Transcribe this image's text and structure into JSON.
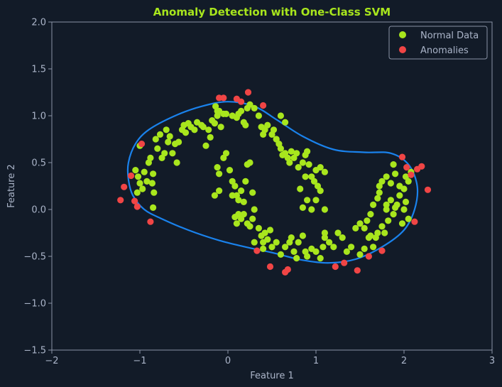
{
  "chart_data": {
    "type": "scatter",
    "title": "Anomaly Detection with One-Class SVM",
    "xlabel": "Feature 1",
    "ylabel": "Feature 2",
    "xlim": [
      -2,
      3
    ],
    "ylim": [
      -1.5,
      2.0
    ],
    "xticks": [
      -2,
      -1,
      0,
      1,
      2,
      3
    ],
    "yticks": [
      -1.5,
      -1.0,
      -0.5,
      0.0,
      0.5,
      1.0,
      1.5,
      2.0
    ],
    "xtick_labels": [
      "−2",
      "−1",
      "0",
      "1",
      "2",
      "3"
    ],
    "ytick_labels": [
      "−1.5",
      "−1.0",
      "−0.5",
      "0.0",
      "0.5",
      "1.0",
      "1.5",
      "2.0"
    ],
    "grid": false,
    "legend_position": "top-right",
    "series": [
      {
        "name": "Normal Data",
        "color": "#a8e61d",
        "points": [
          [
            -1.05,
            0.42
          ],
          [
            -1.02,
            0.35
          ],
          [
            -1.0,
            0.28
          ],
          [
            -0.97,
            0.22
          ],
          [
            -0.95,
            0.4
          ],
          [
            -1.03,
            0.18
          ],
          [
            -0.92,
            0.3
          ],
          [
            -0.9,
            0.5
          ],
          [
            -0.88,
            0.55
          ],
          [
            -0.85,
            0.38
          ],
          [
            -0.86,
            0.28
          ],
          [
            -0.84,
            0.18
          ],
          [
            -0.85,
            0.02
          ],
          [
            -1.0,
            0.68
          ],
          [
            -0.82,
            0.75
          ],
          [
            -0.8,
            0.65
          ],
          [
            -0.77,
            0.8
          ],
          [
            -0.75,
            0.55
          ],
          [
            -0.72,
            0.6
          ],
          [
            -0.7,
            0.85
          ],
          [
            -0.68,
            0.72
          ],
          [
            -0.66,
            0.78
          ],
          [
            -0.63,
            0.6
          ],
          [
            -0.6,
            0.7
          ],
          [
            -0.58,
            0.5
          ],
          [
            -0.56,
            0.72
          ],
          [
            -0.52,
            0.85
          ],
          [
            -0.5,
            0.9
          ],
          [
            -0.48,
            0.82
          ],
          [
            -0.45,
            0.92
          ],
          [
            -0.42,
            0.88
          ],
          [
            -0.38,
            0.85
          ],
          [
            -0.35,
            0.93
          ],
          [
            -0.3,
            0.9
          ],
          [
            -0.28,
            0.88
          ],
          [
            -0.25,
            0.68
          ],
          [
            -0.22,
            0.85
          ],
          [
            -0.2,
            0.77
          ],
          [
            -0.18,
            0.95
          ],
          [
            -0.15,
            0.92
          ],
          [
            -0.12,
            1.0
          ],
          [
            -0.1,
            1.05
          ],
          [
            -0.08,
            0.88
          ],
          [
            -0.05,
            1.02
          ],
          [
            -0.02,
            1.02
          ],
          [
            0.05,
            1.0
          ],
          [
            0.1,
            0.98
          ],
          [
            0.15,
            1.05
          ],
          [
            0.18,
            0.93
          ],
          [
            0.2,
            0.9
          ],
          [
            0.22,
            1.08
          ],
          [
            0.25,
            1.12
          ],
          [
            0.3,
            1.08
          ],
          [
            -0.14,
            1.1
          ],
          [
            -0.12,
            1.05
          ],
          [
            0.12,
            1.02
          ],
          [
            0.35,
            1.0
          ],
          [
            0.38,
            0.88
          ],
          [
            0.4,
            0.8
          ],
          [
            0.42,
            0.85
          ],
          [
            0.45,
            0.9
          ],
          [
            0.5,
            0.8
          ],
          [
            0.52,
            0.85
          ],
          [
            0.55,
            0.75
          ],
          [
            0.58,
            0.7
          ],
          [
            0.6,
            0.65
          ],
          [
            0.62,
            0.58
          ],
          [
            0.65,
            0.6
          ],
          [
            0.68,
            0.55
          ],
          [
            0.7,
            0.5
          ],
          [
            0.72,
            0.62
          ],
          [
            0.75,
            0.55
          ],
          [
            0.78,
            0.6
          ],
          [
            0.8,
            0.45
          ],
          [
            0.85,
            0.5
          ],
          [
            0.88,
            0.58
          ],
          [
            0.9,
            0.62
          ],
          [
            0.92,
            0.48
          ],
          [
            0.95,
            0.35
          ],
          [
            0.98,
            0.3
          ],
          [
            1.0,
            0.42
          ],
          [
            1.05,
            0.45
          ],
          [
            1.1,
            0.4
          ],
          [
            1.02,
            0.25
          ],
          [
            0.88,
            0.35
          ],
          [
            0.82,
            0.22
          ],
          [
            0.85,
            0.02
          ],
          [
            0.9,
            0.1
          ],
          [
            0.95,
            0.0
          ],
          [
            1.0,
            0.1
          ],
          [
            1.05,
            0.2
          ],
          [
            1.1,
            0.0
          ],
          [
            0.55,
            0.75
          ],
          [
            0.6,
            1.0
          ],
          [
            0.65,
            0.93
          ],
          [
            -0.15,
            0.15
          ],
          [
            -0.1,
            0.2
          ],
          [
            -0.05,
            0.55
          ],
          [
            -0.02,
            0.6
          ],
          [
            0.02,
            0.42
          ],
          [
            0.05,
            0.3
          ],
          [
            0.08,
            0.25
          ],
          [
            0.1,
            0.15
          ],
          [
            0.12,
            0.1
          ],
          [
            0.15,
            0.2
          ],
          [
            0.18,
            0.08
          ],
          [
            0.2,
            0.3
          ],
          [
            0.22,
            0.48
          ],
          [
            0.25,
            0.5
          ],
          [
            0.28,
            0.18
          ],
          [
            0.12,
            -0.05
          ],
          [
            0.15,
            -0.1
          ],
          [
            0.18,
            -0.05
          ],
          [
            0.22,
            -0.15
          ],
          [
            0.25,
            -0.18
          ],
          [
            0.28,
            -0.1
          ],
          [
            0.3,
            0.0
          ],
          [
            0.08,
            -0.08
          ],
          [
            0.1,
            -0.15
          ],
          [
            0.05,
            0.15
          ],
          [
            -0.12,
            0.45
          ],
          [
            -0.1,
            0.38
          ],
          [
            0.35,
            -0.2
          ],
          [
            0.38,
            -0.28
          ],
          [
            0.4,
            -0.35
          ],
          [
            0.42,
            -0.25
          ],
          [
            0.45,
            -0.32
          ],
          [
            0.48,
            -0.22
          ],
          [
            0.5,
            -0.4
          ],
          [
            0.55,
            -0.35
          ],
          [
            0.6,
            -0.48
          ],
          [
            0.65,
            -0.4
          ],
          [
            0.7,
            -0.35
          ],
          [
            0.72,
            -0.3
          ],
          [
            0.75,
            -0.45
          ],
          [
            0.78,
            -0.52
          ],
          [
            0.8,
            -0.35
          ],
          [
            0.85,
            -0.28
          ],
          [
            0.88,
            -0.45
          ],
          [
            0.9,
            -0.5
          ],
          [
            0.95,
            -0.42
          ],
          [
            1.0,
            -0.45
          ],
          [
            1.05,
            -0.52
          ],
          [
            1.08,
            -0.4
          ],
          [
            1.1,
            -0.3
          ],
          [
            1.15,
            -0.35
          ],
          [
            1.2,
            -0.4
          ],
          [
            1.25,
            -0.25
          ],
          [
            1.3,
            -0.3
          ],
          [
            1.35,
            -0.45
          ],
          [
            1.4,
            -0.4
          ],
          [
            1.45,
            -0.2
          ],
          [
            1.5,
            -0.48
          ],
          [
            1.55,
            -0.42
          ],
          [
            1.6,
            -0.3
          ],
          [
            1.65,
            -0.4
          ],
          [
            1.7,
            -0.25
          ],
          [
            1.75,
            -0.18
          ],
          [
            1.58,
            -0.12
          ],
          [
            1.62,
            -0.28
          ],
          [
            1.68,
            -0.3
          ],
          [
            1.1,
            -0.25
          ],
          [
            0.4,
            -0.42
          ],
          [
            0.3,
            -0.35
          ],
          [
            1.5,
            -0.15
          ],
          [
            1.55,
            -0.2
          ],
          [
            1.62,
            -0.05
          ],
          [
            1.65,
            0.05
          ],
          [
            1.7,
            0.12
          ],
          [
            1.72,
            0.25
          ],
          [
            1.75,
            0.3
          ],
          [
            1.8,
            0.35
          ],
          [
            1.85,
            0.28
          ],
          [
            1.88,
            0.48
          ],
          [
            1.9,
            0.38
          ],
          [
            1.95,
            0.25
          ],
          [
            2.0,
            0.22
          ],
          [
            2.02,
            0.35
          ],
          [
            2.05,
            0.3
          ],
          [
            2.08,
            0.4
          ],
          [
            1.8,
            0.05
          ],
          [
            1.85,
            0.1
          ],
          [
            1.9,
            0.02
          ],
          [
            1.95,
            0.15
          ],
          [
            2.02,
            0.08
          ],
          [
            1.82,
            -0.12
          ],
          [
            1.88,
            -0.05
          ],
          [
            1.98,
            -0.15
          ],
          [
            2.05,
            -0.1
          ],
          [
            1.78,
            -0.25
          ],
          [
            1.72,
            0.18
          ],
          [
            1.8,
            0.0
          ],
          [
            1.92,
            0.05
          ],
          [
            2.0,
            0.0
          ]
        ]
      },
      {
        "name": "Anomalies",
        "color": "#f04545",
        "points": [
          [
            -1.22,
            0.1
          ],
          [
            -1.18,
            0.24
          ],
          [
            -1.1,
            0.36
          ],
          [
            -1.06,
            0.09
          ],
          [
            -1.03,
            0.03
          ],
          [
            -0.98,
            0.7
          ],
          [
            -0.88,
            -0.13
          ],
          [
            -0.1,
            1.19
          ],
          [
            -0.05,
            1.19
          ],
          [
            0.1,
            1.18
          ],
          [
            0.15,
            1.15
          ],
          [
            0.23,
            1.25
          ],
          [
            0.4,
            1.11
          ],
          [
            0.33,
            -0.44
          ],
          [
            0.48,
            -0.61
          ],
          [
            0.65,
            -0.67
          ],
          [
            0.68,
            -0.64
          ],
          [
            1.22,
            -0.61
          ],
          [
            1.32,
            -0.57
          ],
          [
            1.47,
            -0.65
          ],
          [
            1.6,
            -0.5
          ],
          [
            1.75,
            -0.44
          ],
          [
            1.98,
            0.56
          ],
          [
            2.03,
            0.45
          ],
          [
            2.08,
            0.37
          ],
          [
            2.12,
            -0.13
          ],
          [
            2.15,
            0.43
          ],
          [
            2.2,
            0.46
          ],
          [
            2.27,
            0.21
          ]
        ]
      }
    ]
  }
}
